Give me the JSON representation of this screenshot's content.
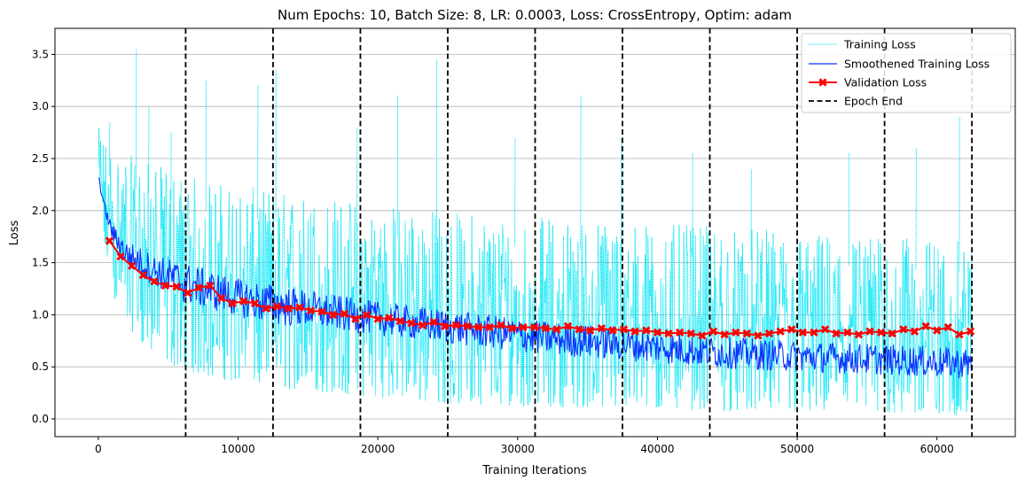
{
  "chart_data": {
    "type": "line",
    "title": "Num Epochs: 10, Batch Size: 8, LR: 0.0003, Loss: CrossEntropy, Optim: adam",
    "xlabel": "Training Iterations",
    "ylabel": "Loss",
    "xlim": [
      -3100,
      65600
    ],
    "ylim": [
      -0.17,
      3.75
    ],
    "x_ticks": [
      0,
      10000,
      20000,
      30000,
      40000,
      50000,
      60000
    ],
    "x_tick_labels": [
      "0",
      "10000",
      "20000",
      "30000",
      "40000",
      "50000",
      "60000"
    ],
    "y_ticks": [
      0.0,
      0.5,
      1.0,
      1.5,
      2.0,
      2.5,
      3.0,
      3.5
    ],
    "y_tick_labels": [
      "0.0",
      "0.5",
      "1.0",
      "1.5",
      "2.0",
      "2.5",
      "3.0",
      "3.5"
    ],
    "grid": "horizontal",
    "legend_position": "top-right",
    "colors": {
      "training": "#00e5f5",
      "smoothed": "#0a32ff",
      "validation": "#ff0000",
      "epoch_end": "#000000"
    },
    "series": [
      {
        "name": "Training Loss",
        "style": "dotted-line",
        "color": "#00e5f5",
        "note_points": "dense noisy band",
        "band_x": [
          0,
          1000,
          2000,
          4000,
          6250,
          10000,
          12500,
          18750,
          25000,
          31250,
          37500,
          43750,
          50000,
          56250,
          62500
        ],
        "band_low": [
          1.9,
          1.2,
          0.9,
          0.6,
          0.45,
          0.35,
          0.3,
          0.22,
          0.15,
          0.12,
          0.1,
          0.08,
          0.06,
          0.05,
          0.03
        ],
        "band_high": [
          2.8,
          2.6,
          2.55,
          2.45,
          2.35,
          2.25,
          2.2,
          2.1,
          2.0,
          1.95,
          1.9,
          1.85,
          1.8,
          1.75,
          1.7
        ],
        "spikes": [
          [
            800,
            2.85
          ],
          [
            2700,
            3.55
          ],
          [
            3600,
            3.0
          ],
          [
            5200,
            2.75
          ],
          [
            7700,
            3.25
          ],
          [
            11400,
            3.2
          ],
          [
            12700,
            3.35
          ],
          [
            18500,
            2.8
          ],
          [
            21400,
            3.1
          ],
          [
            24200,
            3.45
          ],
          [
            29800,
            2.7
          ],
          [
            34500,
            3.1
          ],
          [
            37400,
            2.7
          ],
          [
            42500,
            2.55
          ],
          [
            46700,
            2.4
          ],
          [
            53700,
            2.55
          ],
          [
            58500,
            2.6
          ],
          [
            61600,
            2.9
          ]
        ]
      },
      {
        "name": "Smoothened Training Loss",
        "style": "solid-line",
        "color": "#0a32ff",
        "band_x": [
          0,
          500,
          1000,
          2000,
          4000,
          6250,
          10000,
          12500,
          18750,
          25000,
          31250,
          37500,
          43750,
          50000,
          56250,
          62500
        ],
        "band_low": [
          2.3,
          1.95,
          1.7,
          1.45,
          1.28,
          1.1,
          0.98,
          0.9,
          0.82,
          0.72,
          0.62,
          0.56,
          0.49,
          0.45,
          0.42,
          0.38
        ],
        "band_high": [
          2.35,
          2.05,
          1.88,
          1.72,
          1.58,
          1.5,
          1.35,
          1.3,
          1.15,
          1.05,
          0.95,
          0.88,
          0.8,
          0.75,
          0.72,
          0.68
        ]
      },
      {
        "name": "Validation Loss",
        "style": "line-with-x-markers",
        "color": "#ff0000",
        "x": [
          800,
          1600,
          2400,
          3200,
          4000,
          4800,
          5600,
          6400,
          7200,
          8000,
          8800,
          9600,
          10400,
          11200,
          12000,
          12800,
          13600,
          14400,
          15200,
          16000,
          16800,
          17600,
          18400,
          19200,
          20000,
          20800,
          21600,
          22400,
          23200,
          24000,
          24800,
          25600,
          26400,
          27200,
          28000,
          28800,
          29600,
          30400,
          31200,
          32000,
          32800,
          33600,
          34400,
          35200,
          36000,
          36800,
          37600,
          38400,
          39200,
          40000,
          40800,
          41600,
          42400,
          43200,
          44000,
          44800,
          45600,
          46400,
          47200,
          48000,
          48800,
          49600,
          50400,
          51200,
          52000,
          52800,
          53600,
          54400,
          55200,
          56000,
          56800,
          57600,
          58400,
          59200,
          60000,
          60800,
          61600,
          62400
        ],
        "y": [
          1.71,
          1.56,
          1.47,
          1.38,
          1.32,
          1.28,
          1.27,
          1.21,
          1.26,
          1.28,
          1.16,
          1.11,
          1.13,
          1.11,
          1.06,
          1.08,
          1.06,
          1.07,
          1.04,
          1.03,
          1.0,
          1.01,
          0.96,
          1.0,
          0.96,
          0.97,
          0.94,
          0.92,
          0.9,
          0.93,
          0.89,
          0.9,
          0.89,
          0.88,
          0.88,
          0.9,
          0.87,
          0.88,
          0.88,
          0.87,
          0.86,
          0.89,
          0.86,
          0.85,
          0.87,
          0.85,
          0.86,
          0.84,
          0.85,
          0.83,
          0.82,
          0.83,
          0.82,
          0.8,
          0.84,
          0.81,
          0.83,
          0.82,
          0.8,
          0.82,
          0.84,
          0.86,
          0.83,
          0.83,
          0.86,
          0.82,
          0.83,
          0.81,
          0.84,
          0.83,
          0.82,
          0.86,
          0.84,
          0.89,
          0.85,
          0.88,
          0.81,
          0.84
        ]
      },
      {
        "name": "Epoch End",
        "style": "dashed-vertical-line",
        "color": "#000000",
        "x": [
          6250,
          12500,
          18750,
          25000,
          31250,
          37500,
          43750,
          50000,
          56250,
          62500
        ]
      }
    ]
  }
}
